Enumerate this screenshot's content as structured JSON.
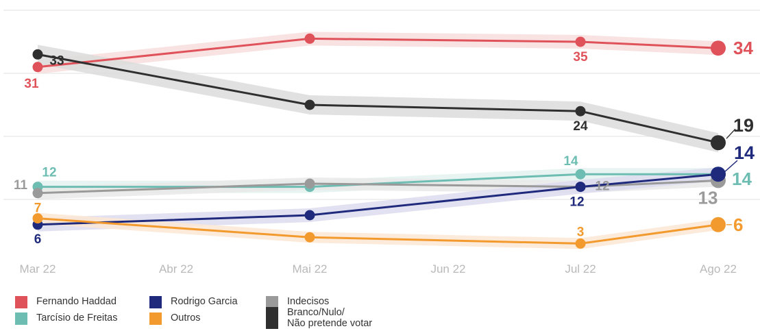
{
  "chart_data": {
    "type": "line",
    "x": [
      "Mar 22",
      "Abr 22",
      "Mai 22",
      "Jun 22",
      "Jul 22",
      "Ago 22"
    ],
    "ylim": [
      0,
      37
    ],
    "grid": true,
    "legend_position": "bottom-left",
    "series": [
      {
        "name": "Fernando Haddad",
        "color": "#e0525a",
        "band": "#f8dddd",
        "points": [
          {
            "x": "Mar 22",
            "y": 31
          },
          {
            "x": "Mai 22",
            "y": 35.5
          },
          {
            "x": "Jul 22",
            "y": 35
          },
          {
            "x": "Ago 22",
            "y": 34
          }
        ],
        "labels": [
          {
            "x": "Mar 22",
            "text": "31"
          },
          {
            "x": "Jul 22",
            "text": "35"
          },
          {
            "x": "Ago 22",
            "text": "34"
          }
        ]
      },
      {
        "name": "Branco/Nulo/\nNão pretende votar",
        "color": "#2f2f2f",
        "band": "#dcdcdc",
        "points": [
          {
            "x": "Mar 22",
            "y": 33
          },
          {
            "x": "Mai 22",
            "y": 25
          },
          {
            "x": "Jul 22",
            "y": 24
          },
          {
            "x": "Ago 22",
            "y": 19
          }
        ],
        "labels": [
          {
            "x": "Mar 22",
            "text": "33"
          },
          {
            "x": "Jul 22",
            "text": "24"
          },
          {
            "x": "Ago 22",
            "text": "19"
          }
        ]
      },
      {
        "name": "Tarcísio de Freitas",
        "color": "#6dbdb3",
        "band": "#e3f2ee",
        "points": [
          {
            "x": "Mar 22",
            "y": 12
          },
          {
            "x": "Mai 22",
            "y": 12
          },
          {
            "x": "Jul 22",
            "y": 14
          },
          {
            "x": "Ago 22",
            "y": 14
          }
        ],
        "labels": [
          {
            "x": "Mar 22",
            "text": "12"
          },
          {
            "x": "Jul 22",
            "text": "14"
          },
          {
            "x": "Ago 22",
            "text": "14"
          }
        ]
      },
      {
        "name": "Indecisos",
        "color": "#9a9a9a",
        "band": "#e9e9e9",
        "points": [
          {
            "x": "Mar 22",
            "y": 11
          },
          {
            "x": "Mai 22",
            "y": 12.5
          },
          {
            "x": "Jul 22",
            "y": 12
          },
          {
            "x": "Ago 22",
            "y": 13
          }
        ],
        "labels": [
          {
            "x": "Mar 22",
            "text": "11"
          },
          {
            "x": "Jul 22",
            "text": "12"
          },
          {
            "x": "Ago 22",
            "text": "13"
          }
        ]
      },
      {
        "name": "Rodrigo Garcia",
        "color": "#1f2a7c",
        "band": "#dcdcee",
        "points": [
          {
            "x": "Mar 22",
            "y": 6
          },
          {
            "x": "Mai 22",
            "y": 7.5
          },
          {
            "x": "Jul 22",
            "y": 12
          },
          {
            "x": "Ago 22",
            "y": 14
          }
        ],
        "labels": [
          {
            "x": "Mar 22",
            "text": "6"
          },
          {
            "x": "Jul 22",
            "text": "12"
          },
          {
            "x": "Ago 22",
            "text": "14"
          }
        ]
      },
      {
        "name": "Outros",
        "color": "#f39a2e",
        "band": "#fce8d3",
        "points": [
          {
            "x": "Mar 22",
            "y": 7
          },
          {
            "x": "Mai 22",
            "y": 4
          },
          {
            "x": "Jul 22",
            "y": 3
          },
          {
            "x": "Ago 22",
            "y": 6
          }
        ],
        "labels": [
          {
            "x": "Mar 22",
            "text": "7"
          },
          {
            "x": "Jul 22",
            "text": "3"
          },
          {
            "x": "Ago 22",
            "text": "6"
          }
        ]
      }
    ]
  },
  "legend": {
    "items": [
      {
        "label": "Fernando Haddad",
        "color": "#e0525a"
      },
      {
        "label": "Tarcísio de Freitas",
        "color": "#6dbdb3"
      },
      {
        "label": "Rodrigo Garcia",
        "color": "#1f2a7c"
      },
      {
        "label": "Outros",
        "color": "#f39a2e"
      },
      {
        "label": "Indecisos",
        "color": "#9a9a9a"
      },
      {
        "label": "Branco/Nulo/\nNão pretende votar",
        "color": "#2f2f2f"
      }
    ]
  }
}
